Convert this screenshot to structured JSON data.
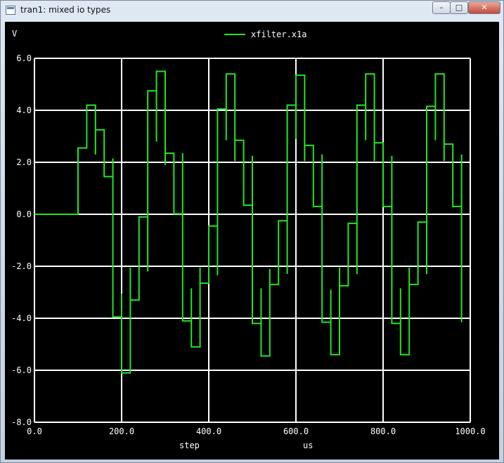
{
  "window": {
    "title": "tran1: mixed io types",
    "controls": {
      "minimize": "–",
      "maximize": "□",
      "close": "✕"
    }
  },
  "colors": {
    "background": "#000000",
    "grid": "#ffffff",
    "axis_text": "#ffffff",
    "trace": "#22e522"
  },
  "chart_data": {
    "type": "line",
    "ylabel": "V",
    "xlabel": "step",
    "xunit": "us",
    "legend": "xfilter.x1a",
    "xlim": [
      0,
      1000
    ],
    "ylim": [
      -8,
      6
    ],
    "x_ticks": [
      0,
      200,
      400,
      600,
      800,
      1000
    ],
    "x_tick_labels": [
      "0.0",
      "200.0",
      "400.0",
      "600.0",
      "800.0",
      "1000.0"
    ],
    "y_ticks": [
      6,
      4,
      2,
      0,
      -2,
      -4,
      -6,
      -8
    ],
    "y_tick_labels": [
      "6.0",
      "4.0",
      "2.0",
      "0.0",
      "-2.0",
      "-4.0",
      "-6.0",
      "-8.0"
    ],
    "grid": true,
    "series": [
      {
        "name": "xfilter.x1a",
        "points": [
          [
            0,
            0
          ],
          [
            100,
            0
          ],
          [
            100,
            2.55
          ],
          [
            120,
            2.55
          ],
          [
            120,
            4.2
          ],
          [
            140,
            4.2
          ],
          [
            140,
            2.3
          ],
          [
            140,
            3.25
          ],
          [
            160,
            3.25
          ],
          [
            160,
            1.45
          ],
          [
            180,
            1.45
          ],
          [
            180,
            2.15
          ],
          [
            180,
            -3.95
          ],
          [
            200,
            -3.95
          ],
          [
            200,
            -3.05
          ],
          [
            200,
            -6.1
          ],
          [
            220,
            -6.1
          ],
          [
            220,
            -2.05
          ],
          [
            220,
            -3.3
          ],
          [
            240,
            -3.3
          ],
          [
            240,
            -0.1
          ],
          [
            260,
            -0.1
          ],
          [
            260,
            -2.2
          ],
          [
            260,
            4.75
          ],
          [
            280,
            4.75
          ],
          [
            280,
            2.8
          ],
          [
            280,
            5.5
          ],
          [
            300,
            5.5
          ],
          [
            300,
            1.9
          ],
          [
            300,
            2.35
          ],
          [
            320,
            2.35
          ],
          [
            320,
            0.02
          ],
          [
            340,
            0.02
          ],
          [
            340,
            2.35
          ],
          [
            340,
            -4.1
          ],
          [
            360,
            -4.1
          ],
          [
            360,
            -2.85
          ],
          [
            360,
            -5.1
          ],
          [
            380,
            -5.1
          ],
          [
            380,
            -2.05
          ],
          [
            380,
            -2.65
          ],
          [
            400,
            -2.65
          ],
          [
            400,
            -0.45
          ],
          [
            420,
            -0.45
          ],
          [
            420,
            -2.35
          ],
          [
            420,
            4.05
          ],
          [
            440,
            4.05
          ],
          [
            440,
            2.85
          ],
          [
            440,
            5.4
          ],
          [
            460,
            5.4
          ],
          [
            460,
            2.05
          ],
          [
            460,
            2.85
          ],
          [
            480,
            2.85
          ],
          [
            480,
            0.35
          ],
          [
            500,
            0.35
          ],
          [
            500,
            2.25
          ],
          [
            500,
            -4.2
          ],
          [
            520,
            -4.2
          ],
          [
            520,
            -2.85
          ],
          [
            520,
            -5.45
          ],
          [
            540,
            -5.45
          ],
          [
            540,
            -2.1
          ],
          [
            540,
            -2.7
          ],
          [
            560,
            -2.7
          ],
          [
            560,
            -0.25
          ],
          [
            580,
            -0.25
          ],
          [
            580,
            -2.3
          ],
          [
            580,
            4.2
          ],
          [
            600,
            4.2
          ],
          [
            600,
            2.9
          ],
          [
            600,
            5.35
          ],
          [
            620,
            5.35
          ],
          [
            620,
            2.05
          ],
          [
            620,
            2.65
          ],
          [
            640,
            2.65
          ],
          [
            640,
            0.3
          ],
          [
            660,
            0.3
          ],
          [
            660,
            2.3
          ],
          [
            660,
            -4.15
          ],
          [
            680,
            -4.15
          ],
          [
            680,
            -2.9
          ],
          [
            680,
            -5.4
          ],
          [
            700,
            -5.4
          ],
          [
            700,
            -2.05
          ],
          [
            700,
            -2.75
          ],
          [
            720,
            -2.75
          ],
          [
            720,
            -0.35
          ],
          [
            740,
            -0.35
          ],
          [
            740,
            -2.3
          ],
          [
            740,
            4.2
          ],
          [
            760,
            4.2
          ],
          [
            760,
            2.85
          ],
          [
            760,
            5.4
          ],
          [
            780,
            5.4
          ],
          [
            780,
            2.05
          ],
          [
            780,
            2.75
          ],
          [
            800,
            2.75
          ],
          [
            800,
            0.3
          ],
          [
            820,
            0.3
          ],
          [
            820,
            2.25
          ],
          [
            820,
            -4.2
          ],
          [
            840,
            -4.2
          ],
          [
            840,
            -2.85
          ],
          [
            840,
            -5.4
          ],
          [
            860,
            -5.4
          ],
          [
            860,
            -2.05
          ],
          [
            860,
            -2.7
          ],
          [
            880,
            -2.7
          ],
          [
            880,
            -0.3
          ],
          [
            900,
            -0.3
          ],
          [
            900,
            -2.3
          ],
          [
            900,
            4.15
          ],
          [
            920,
            4.15
          ],
          [
            920,
            2.85
          ],
          [
            920,
            5.4
          ],
          [
            940,
            5.4
          ],
          [
            940,
            2.05
          ],
          [
            940,
            2.7
          ],
          [
            960,
            2.7
          ],
          [
            960,
            0.3
          ],
          [
            980,
            0.3
          ],
          [
            980,
            2.3
          ],
          [
            980,
            -4.15
          ]
        ]
      }
    ]
  }
}
